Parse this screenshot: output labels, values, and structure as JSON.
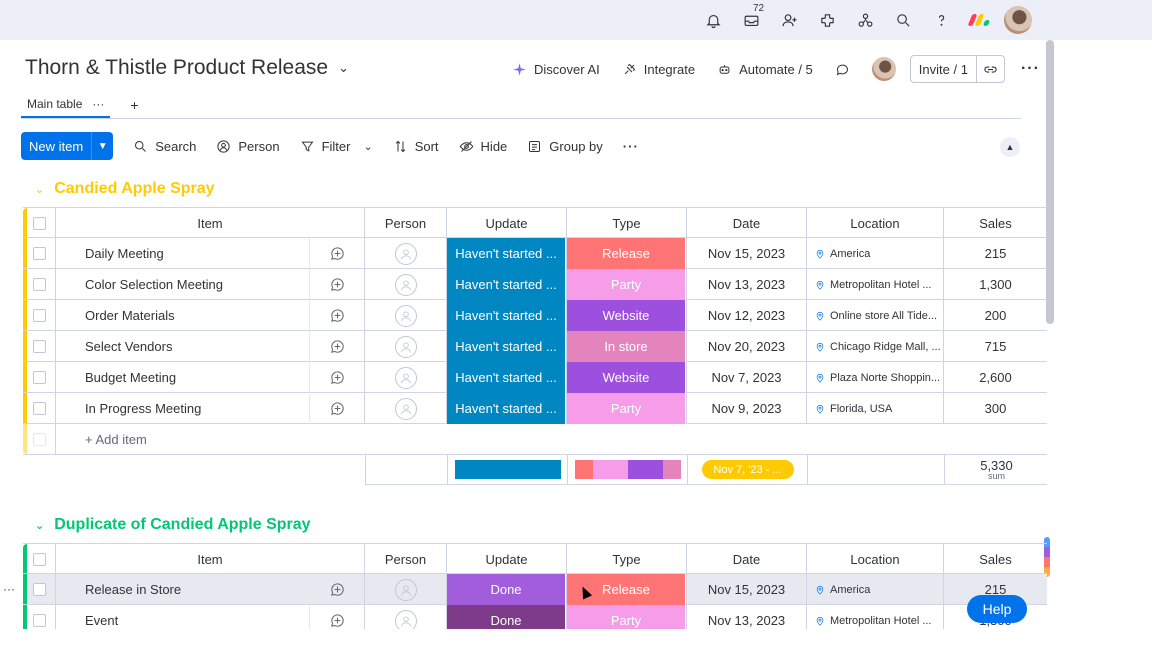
{
  "topbar": {
    "inbox_count": "72",
    "icons": [
      "bell-icon",
      "inbox-icon",
      "invite-people-icon",
      "apps-icon",
      "integrations-icon",
      "search-icon",
      "help-icon",
      "monday-logo-icon",
      "user-avatar"
    ]
  },
  "board": {
    "title": "Thorn & Thistle Product Release",
    "actions": {
      "discover_ai": "Discover AI",
      "integrate": "Integrate",
      "automate": "Automate / 5",
      "invite": "Invite / 1"
    }
  },
  "tabs": {
    "main_table": "Main table",
    "tab_menu": "···",
    "add": "+"
  },
  "toolbar": {
    "new_item": "New item",
    "search": "Search",
    "person": "Person",
    "filter": "Filter",
    "sort": "Sort",
    "hide": "Hide",
    "group_by": "Group by",
    "more": "···"
  },
  "columns": {
    "item": "Item",
    "person": "Person",
    "update": "Update",
    "type": "Type",
    "date": "Date",
    "location": "Location",
    "sales": "Sales"
  },
  "colors": {
    "accent": "#0073ea",
    "group1": "#ffcb00",
    "group2": "#00c875",
    "status_blue": "#0086c0",
    "status_done": "#9d50dd",
    "release": "#ff7575",
    "party": "#f79ce8",
    "website": "#9d50dd",
    "in_store": "#e484bd"
  },
  "groups": [
    {
      "name": "Candied Apple Spray",
      "color": "#ffcb00",
      "add_item": "+ Add item",
      "rows": [
        {
          "item": "Daily Meeting",
          "update": "Haven't started ...",
          "type": "Release",
          "type_color": "#ff7575",
          "date": "Nov 15, 2023",
          "location": "America",
          "sales": "215"
        },
        {
          "item": "Color Selection Meeting",
          "update": "Haven't started ...",
          "type": "Party",
          "type_color": "#f79ce8",
          "date": "Nov 13, 2023",
          "location": "Metropolitan Hotel ...",
          "sales": "1,300"
        },
        {
          "item": "Order Materials",
          "update": "Haven't started ...",
          "type": "Website",
          "type_color": "#9d50dd",
          "date": "Nov 12, 2023",
          "location": "Online store All Tide...",
          "sales": "200"
        },
        {
          "item": "Select Vendors",
          "update": "Haven't started ...",
          "type": "In store",
          "type_color": "#e484bd",
          "date": "Nov 20, 2023",
          "location": "Chicago Ridge Mall, ...",
          "sales": "715"
        },
        {
          "item": "Budget Meeting",
          "update": "Haven't started ...",
          "type": "Website",
          "type_color": "#9d50dd",
          "date": "Nov 7, 2023",
          "location": "Plaza Norte Shoppin...",
          "sales": "2,600"
        },
        {
          "item": "In Progress Meeting",
          "update": "Haven't started ...",
          "type": "Party",
          "type_color": "#f79ce8",
          "date": "Nov 9, 2023",
          "location": "Florida, USA",
          "sales": "300"
        }
      ],
      "summary": {
        "date_range": "Nov 7, '23 - ...",
        "sales_sum": "5,330",
        "sales_label": "sum"
      }
    },
    {
      "name": "Duplicate of Candied Apple Spray",
      "color": "#00c875",
      "rows": [
        {
          "item": "Release in Store",
          "update": "Done",
          "update_color": "#a25ddc",
          "type": "Release",
          "type_color": "#ff7575",
          "date": "Nov 15, 2023",
          "location": "America",
          "sales": "215"
        },
        {
          "item": "Event",
          "update": "Done",
          "update_color": "#7e3b8a",
          "type": "Party",
          "type_color": "#f79ce8",
          "date": "Nov 13, 2023",
          "location": "Metropolitan Hotel ...",
          "sales": "1,300"
        }
      ]
    }
  ],
  "help": "Help",
  "row_menu": "···"
}
